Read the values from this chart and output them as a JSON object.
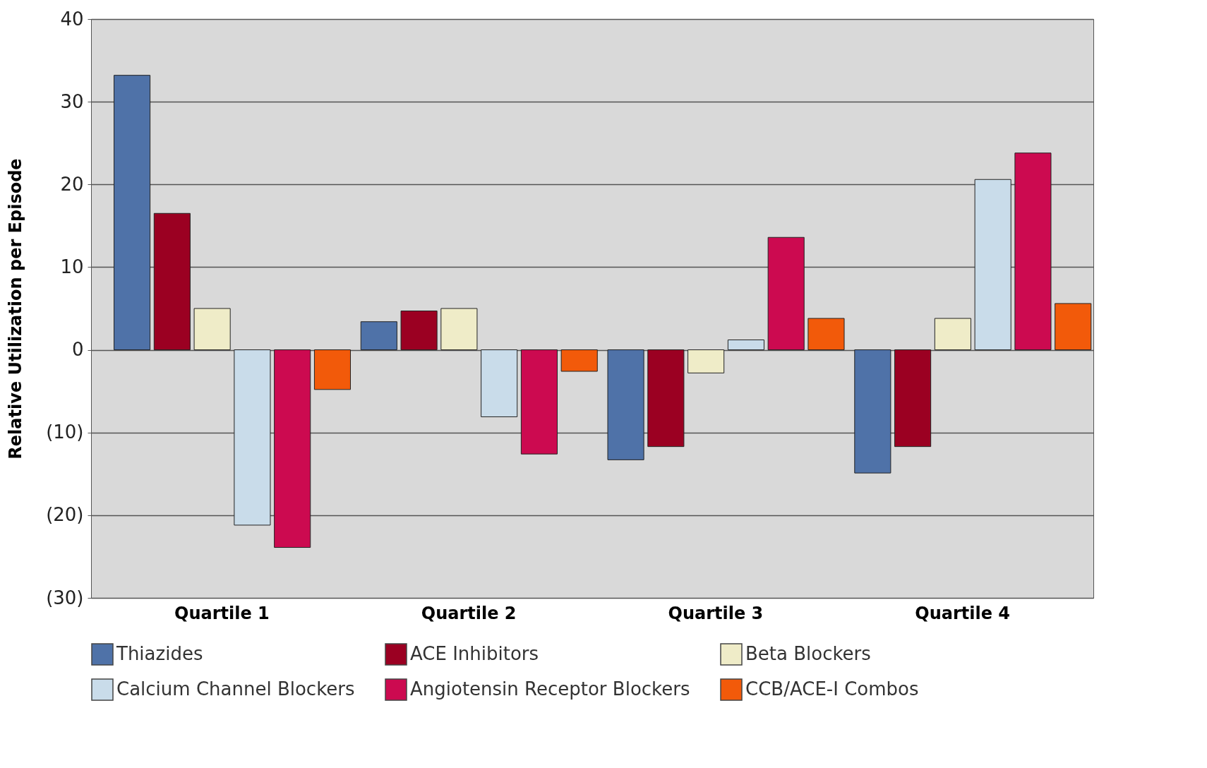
{
  "chart_data": {
    "type": "bar",
    "ylabel": "Relative Utilization per Episode",
    "categories": [
      "Quartile 1",
      "Quartile 2",
      "Quartile 3",
      "Quartile 4"
    ],
    "series": [
      {
        "name": "Thiazides",
        "color": "#4f72a8",
        "values": [
          33.2,
          3.4,
          -13.3,
          -14.9
        ]
      },
      {
        "name": "ACE Inhibitors",
        "color": "#9b0022",
        "values": [
          16.5,
          4.7,
          -11.7,
          -11.7
        ]
      },
      {
        "name": "Beta Blockers",
        "color": "#efecc8",
        "values": [
          5.0,
          5.0,
          -2.8,
          3.8
        ]
      },
      {
        "name": "Calcium Channel Blockers",
        "color": "#c9dcea",
        "values": [
          -21.2,
          -8.1,
          1.2,
          20.6
        ]
      },
      {
        "name": "Angiotensin Receptor Blockers",
        "color": "#cc0a50",
        "values": [
          -23.9,
          -12.6,
          13.6,
          23.8
        ]
      },
      {
        "name": "CCB/ACE-I Combos",
        "color": "#f25a0a",
        "values": [
          -4.8,
          -2.6,
          3.8,
          5.6
        ]
      }
    ],
    "ylim": [
      -30,
      40
    ],
    "yticks": [
      {
        "value": -30,
        "label": "(30)"
      },
      {
        "value": -20,
        "label": "(20)"
      },
      {
        "value": -10,
        "label": "(10)"
      },
      0,
      10,
      20,
      30,
      40
    ],
    "grid": "y",
    "legend": "bottom"
  }
}
